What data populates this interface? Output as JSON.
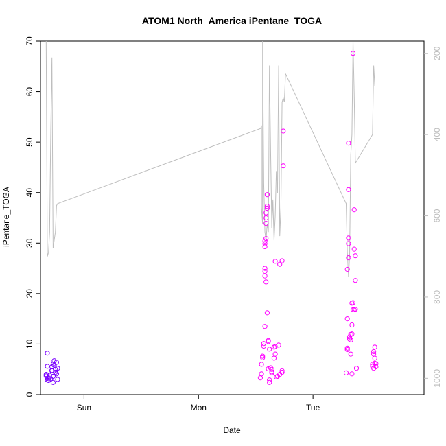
{
  "chart_data": {
    "type": "scatter",
    "title": "ATOM1 North_America iPentane_TOGA",
    "xlabel": "Date",
    "ylabel": "iPentane_TOGA",
    "x_ticks": [
      {
        "t": 0.0,
        "label": "Sun"
      },
      {
        "t": 1.0,
        "label": "Mon"
      },
      {
        "t": 2.0,
        "label": "Tue"
      }
    ],
    "xlim": [
      -0.38,
      2.97
    ],
    "ylim": [
      0,
      70
    ],
    "y_ticks": [
      0,
      10,
      20,
      30,
      40,
      50,
      60,
      70
    ],
    "y2_label_ticks": [
      200,
      400,
      600,
      800,
      1000
    ],
    "y2_lim": [
      1040,
      170
    ],
    "grid": false,
    "colors": {
      "line": "#bebebe",
      "axis_right": "#bdbdbd",
      "points_early": "#7a00ff",
      "points_late": "#ff00ff"
    },
    "series": [
      {
        "values": [
          [
            -0.32,
            3.2
          ],
          [
            -0.33,
            3.7
          ],
          [
            -0.31,
            3.3
          ],
          [
            -0.32,
            2.9
          ],
          [
            -0.33,
            4.0
          ],
          [
            -0.32,
            5.6
          ],
          [
            -0.31,
            2.8
          ],
          [
            -0.3,
            3.5
          ],
          [
            -0.29,
            3.1
          ],
          [
            -0.28,
            5.5
          ],
          [
            -0.28,
            4.7
          ],
          [
            -0.27,
            6.0
          ],
          [
            -0.27,
            2.4
          ],
          [
            -0.26,
            5.8
          ],
          [
            -0.26,
            6.7
          ],
          [
            -0.25,
            5.0
          ],
          [
            -0.25,
            4.4
          ],
          [
            -0.24,
            4.1
          ],
          [
            -0.24,
            6.4
          ],
          [
            -0.23,
            5.2
          ],
          [
            -0.23,
            3.0
          ],
          [
            -0.27,
            3.6
          ],
          [
            -0.32,
            8.2
          ],
          [
            -0.3,
            3.8
          ],
          [
            -0.28,
            4.8
          ]
        ]
      },
      {
        "values": [
          [
            1.54,
            3.3
          ],
          [
            1.55,
            4.1
          ],
          [
            1.55,
            6.0
          ],
          [
            1.56,
            7.3
          ],
          [
            1.56,
            7.6
          ],
          [
            1.57,
            9.6
          ],
          [
            1.57,
            10.1
          ],
          [
            1.58,
            13.5
          ],
          [
            1.58,
            23.5
          ],
          [
            1.58,
            24.4
          ],
          [
            1.58,
            25.0
          ],
          [
            1.59,
            22.3
          ],
          [
            1.58,
            29.3
          ],
          [
            1.58,
            29.9
          ],
          [
            1.58,
            30.4
          ],
          [
            1.59,
            30.9
          ],
          [
            1.59,
            33.9
          ],
          [
            1.59,
            35.0
          ],
          [
            1.59,
            36.0
          ],
          [
            1.6,
            36.9
          ],
          [
            1.6,
            37.3
          ],
          [
            1.6,
            39.6
          ],
          [
            1.6,
            16.2
          ],
          [
            1.61,
            10.7
          ],
          [
            1.61,
            10.5
          ],
          [
            1.62,
            9.0
          ],
          [
            1.61,
            5.1
          ],
          [
            1.62,
            2.9
          ],
          [
            1.62,
            2.4
          ],
          [
            1.63,
            5.3
          ],
          [
            1.64,
            5.0
          ],
          [
            1.64,
            4.5
          ],
          [
            1.64,
            4.3
          ],
          [
            1.66,
            9.4
          ],
          [
            1.66,
            7.2
          ],
          [
            1.67,
            9.5
          ],
          [
            1.67,
            8.0
          ],
          [
            1.68,
            3.5
          ],
          [
            1.69,
            3.6
          ],
          [
            1.7,
            9.8
          ],
          [
            1.71,
            4.0
          ],
          [
            1.71,
            25.8
          ],
          [
            1.67,
            26.4
          ],
          [
            1.73,
            4.4
          ],
          [
            1.73,
            4.7
          ],
          [
            1.73,
            26.5
          ],
          [
            1.74,
            45.3
          ],
          [
            1.74,
            52.2
          ]
        ]
      },
      {
        "values": [
          [
            2.29,
            4.3
          ],
          [
            2.3,
            9.2
          ],
          [
            2.3,
            8.9
          ],
          [
            2.3,
            15.0
          ],
          [
            2.3,
            24.8
          ],
          [
            2.31,
            27.1
          ],
          [
            2.31,
            29.9
          ],
          [
            2.31,
            31.0
          ],
          [
            2.31,
            40.6
          ],
          [
            2.31,
            49.8
          ],
          [
            2.32,
            11.0
          ],
          [
            2.32,
            11.4
          ],
          [
            2.33,
            10.8
          ],
          [
            2.33,
            11.9
          ],
          [
            2.33,
            8.0
          ],
          [
            2.34,
            4.1
          ],
          [
            2.34,
            12.0
          ],
          [
            2.34,
            13.8
          ],
          [
            2.34,
            18.1
          ],
          [
            2.35,
            18.2
          ],
          [
            2.35,
            16.8
          ],
          [
            2.36,
            16.8
          ],
          [
            2.37,
            16.9
          ],
          [
            2.35,
            67.6
          ],
          [
            2.36,
            36.6
          ],
          [
            2.36,
            28.8
          ],
          [
            2.37,
            27.5
          ],
          [
            2.37,
            22.6
          ],
          [
            2.38,
            5.2
          ],
          [
            2.52,
            5.6
          ],
          [
            2.52,
            6.0
          ],
          [
            2.53,
            8.5
          ],
          [
            2.53,
            8.0
          ],
          [
            2.54,
            9.4
          ],
          [
            2.54,
            6.2
          ],
          [
            2.55,
            5.5
          ],
          [
            2.55,
            6.1
          ],
          [
            2.54,
            7.2
          ],
          [
            2.53,
            5.2
          ]
        ]
      }
    ],
    "altitude_line": [
      [
        -0.33,
        170
      ],
      [
        -0.32,
        700
      ],
      [
        -0.31,
        690
      ],
      [
        -0.3,
        640
      ],
      [
        -0.29,
        390
      ],
      [
        -0.28,
        210
      ],
      [
        -0.27,
        680
      ],
      [
        -0.26,
        660
      ],
      [
        -0.25,
        640
      ],
      [
        -0.24,
        575
      ],
      [
        -0.23,
        570
      ],
      [
        1.54,
        385
      ],
      [
        1.55,
        380
      ],
      [
        1.55,
        580
      ],
      [
        1.56,
        620
      ],
      [
        1.56,
        170
      ],
      [
        1.57,
        520
      ],
      [
        1.58,
        640
      ],
      [
        1.59,
        660
      ],
      [
        1.6,
        620
      ],
      [
        1.61,
        640
      ],
      [
        1.62,
        230
      ],
      [
        1.63,
        440
      ],
      [
        1.64,
        630
      ],
      [
        1.65,
        560
      ],
      [
        1.66,
        660
      ],
      [
        1.67,
        600
      ],
      [
        1.68,
        490
      ],
      [
        1.69,
        545
      ],
      [
        1.7,
        230
      ],
      [
        1.71,
        650
      ],
      [
        1.72,
        580
      ],
      [
        1.73,
        320
      ],
      [
        1.74,
        310
      ],
      [
        1.75,
        320
      ],
      [
        1.76,
        250
      ],
      [
        2.29,
        570
      ],
      [
        2.3,
        690
      ],
      [
        2.31,
        750
      ],
      [
        2.32,
        700
      ],
      [
        2.33,
        450
      ],
      [
        2.34,
        400
      ],
      [
        2.35,
        170
      ],
      [
        2.36,
        300
      ],
      [
        2.37,
        470
      ],
      [
        2.52,
        400
      ],
      [
        2.53,
        230
      ],
      [
        2.54,
        280
      ]
    ]
  }
}
